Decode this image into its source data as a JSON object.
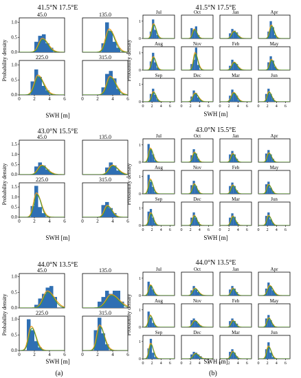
{
  "figure": {
    "panel_labels": [
      "(a)",
      "(b)"
    ],
    "ylabel": "Probability density",
    "xlabel": "SWH [m]",
    "colors": {
      "bar": "#2f6fb3",
      "curve_orange": "#e89a1a",
      "curve_green": "#3d9a3d"
    }
  },
  "locations": [
    {
      "title": "41.5°N 17.5°E"
    },
    {
      "title": "43.0°N 15.5°E"
    },
    {
      "title": "44.0°N 13.5°E"
    }
  ],
  "chart_data": [
    {
      "type": "bar",
      "panel": "a",
      "location": "41.5°N 17.5°E",
      "xlabel": "SWH [m]",
      "ylabel": "Probability density",
      "xticks": [
        0,
        2,
        4,
        6
      ],
      "yticks": [
        0.0,
        0.5,
        1.0
      ],
      "xlim": [
        0,
        6
      ],
      "ylim": [
        0,
        1.15
      ],
      "subplots": [
        {
          "title": "45.0",
          "edges": [
            2,
            2.5,
            3,
            3.5,
            4,
            4.5
          ],
          "heights": [
            0.35,
            0.55,
            0.6,
            0.3,
            0.15
          ]
        },
        {
          "title": "135.0",
          "edges": [
            2.5,
            3,
            3.5,
            4,
            4.5,
            5
          ],
          "heights": [
            0.3,
            1.0,
            0.7,
            0.35,
            0.15
          ]
        },
        {
          "title": "225.0",
          "edges": [
            1.5,
            2,
            2.5,
            3,
            3.5,
            4
          ],
          "heights": [
            0.45,
            0.85,
            0.6,
            0.3,
            0.15
          ]
        },
        {
          "title": "315.0",
          "edges": [
            2.5,
            3,
            3.5,
            4,
            4.5,
            5
          ],
          "heights": [
            0.25,
            0.7,
            0.8,
            0.55,
            0.2
          ]
        }
      ]
    },
    {
      "type": "bar",
      "panel": "a",
      "location": "43.0°N 15.5°E",
      "xlabel": "SWH [m]",
      "ylabel": "Probability density",
      "xticks": [
        0,
        2,
        4,
        6
      ],
      "yticks": [
        0.0,
        0.5,
        1.0,
        1.5
      ],
      "xlim": [
        0,
        6
      ],
      "ylim": [
        0,
        1.7
      ],
      "subplots": [
        {
          "title": "45.0",
          "edges": [
            2,
            2.5,
            3,
            3.5,
            4,
            4.5
          ],
          "heights": [
            0.4,
            0.6,
            0.45,
            0.25,
            0.1
          ]
        },
        {
          "title": "135.0",
          "edges": [
            3,
            3.5,
            4,
            4.5,
            5,
            5.5
          ],
          "heights": [
            0.35,
            0.6,
            0.45,
            0.2,
            0.1
          ]
        },
        {
          "title": "225.0",
          "edges": [
            1.5,
            2,
            2.5,
            3,
            3.5
          ],
          "heights": [
            0.55,
            1.55,
            0.5,
            0.2
          ]
        },
        {
          "title": "315.0",
          "edges": [
            2.5,
            3,
            3.5,
            4,
            4.5
          ],
          "heights": [
            0.6,
            0.75,
            0.45,
            0.2
          ]
        }
      ]
    },
    {
      "type": "bar",
      "panel": "a",
      "location": "44.0°N 13.5°E",
      "xlabel": "SWH [m]",
      "ylabel": "Probability density",
      "xticks": [
        0,
        2,
        4,
        6
      ],
      "yticks": [
        0.0,
        0.5,
        1.0
      ],
      "xlim": [
        0,
        6
      ],
      "ylim": [
        0,
        1.1
      ],
      "subplots": [
        {
          "title": "45.0",
          "edges": [
            2,
            2.5,
            3,
            3.5,
            4,
            4.5,
            5
          ],
          "heights": [
            0.1,
            0.3,
            0.45,
            0.65,
            0.7,
            0.35
          ]
        },
        {
          "title": "135.0",
          "edges": [
            2,
            2.5,
            3,
            3.5,
            4,
            4.5,
            5,
            5.5
          ],
          "heights": [
            0.2,
            0.35,
            0.55,
            0.45,
            0.55,
            0.55,
            0.2
          ]
        },
        {
          "title": "225.0",
          "edges": [
            1,
            1.5,
            2,
            2.5,
            3
          ],
          "heights": [
            1.0,
            0.65,
            0.3,
            0.1
          ]
        },
        {
          "title": "315.0",
          "edges": [
            1.5,
            2,
            2.5,
            3,
            3.5
          ],
          "heights": [
            0.65,
            1.05,
            0.55,
            0.2
          ]
        }
      ]
    },
    {
      "type": "bar",
      "panel": "b",
      "location": "41.5°N 17.5°E",
      "xlabel": "SWH [m]",
      "ylabel": "Probability density",
      "xticks": [
        0,
        2,
        4,
        6
      ],
      "yticks": [
        0,
        1
      ],
      "xlim": [
        0,
        7
      ],
      "ylim": [
        0,
        1.35
      ],
      "subplots": [
        {
          "title": "Jul",
          "edges": [
            1.5,
            2,
            2.5,
            3,
            3.5
          ],
          "heights": [
            0.4,
            1.1,
            0.5,
            0.2
          ]
        },
        {
          "title": "Oct",
          "edges": [
            2,
            2.5,
            3,
            3.5,
            4
          ],
          "heights": [
            0.6,
            0.5,
            0.7,
            0.2
          ]
        },
        {
          "title": "Jan",
          "edges": [
            2,
            2.5,
            3,
            3.5,
            4,
            4.5
          ],
          "heights": [
            0.3,
            0.55,
            0.45,
            0.35,
            0.15
          ]
        },
        {
          "title": "Apr",
          "edges": [
            2,
            2.5,
            3,
            3.5,
            4
          ],
          "heights": [
            0.4,
            1.0,
            0.65,
            0.2
          ]
        },
        {
          "title": "Aug",
          "edges": [
            1.5,
            2,
            2.5,
            3,
            3.5
          ],
          "heights": [
            0.5,
            1.0,
            0.45,
            0.15
          ]
        },
        {
          "title": "Nov",
          "edges": [
            2,
            2.5,
            3,
            3.5,
            4
          ],
          "heights": [
            0.35,
            0.6,
            1.3,
            0.3
          ]
        },
        {
          "title": "Feb",
          "edges": [
            2,
            2.5,
            3,
            3.5,
            4,
            4.5
          ],
          "heights": [
            0.25,
            0.6,
            0.45,
            0.35,
            0.15
          ]
        },
        {
          "title": "May",
          "edges": [
            2,
            2.5,
            3,
            3.5,
            4
          ],
          "heights": [
            0.45,
            0.8,
            0.55,
            0.2
          ]
        },
        {
          "title": "Sep",
          "edges": [
            1.5,
            2,
            2.5,
            3,
            3.5
          ],
          "heights": [
            0.45,
            0.75,
            0.4,
            0.15
          ]
        },
        {
          "title": "Dec",
          "edges": [
            2,
            2.5,
            3,
            3.5,
            4,
            4.5
          ],
          "heights": [
            0.3,
            0.65,
            0.5,
            0.25,
            0.1
          ]
        },
        {
          "title": "Mar",
          "edges": [
            2,
            2.5,
            3,
            3.5,
            4,
            4.5
          ],
          "heights": [
            0.35,
            0.7,
            0.5,
            0.35,
            0.1
          ]
        },
        {
          "title": "Jun",
          "edges": [
            1.5,
            2,
            2.5,
            3,
            3.5
          ],
          "heights": [
            0.45,
            0.75,
            0.45,
            0.2
          ]
        }
      ]
    },
    {
      "type": "bar",
      "panel": "b",
      "location": "43.0°N 15.5°E",
      "xlabel": "SWH [m]",
      "ylabel": "Probability density",
      "xticks": [
        0,
        2,
        4,
        6
      ],
      "yticks": [
        0,
        1
      ],
      "xlim": [
        0,
        7
      ],
      "ylim": [
        0,
        1.35
      ],
      "subplots": [
        {
          "title": "Jul",
          "edges": [
            1,
            1.5,
            2,
            2.5,
            3
          ],
          "heights": [
            1.05,
            0.75,
            0.45,
            0.1
          ]
        },
        {
          "title": "Oct",
          "edges": [
            2,
            2.5,
            3,
            3.5,
            4
          ],
          "heights": [
            0.4,
            0.75,
            0.5,
            0.2
          ]
        },
        {
          "title": "Jan",
          "edges": [
            2,
            2.5,
            3,
            3.5,
            4
          ],
          "heights": [
            0.45,
            0.65,
            0.45,
            0.2
          ]
        },
        {
          "title": "Apr",
          "edges": [
            1.5,
            2,
            2.5,
            3,
            3.5
          ],
          "heights": [
            0.5,
            0.7,
            0.45,
            0.2
          ]
        },
        {
          "title": "Aug",
          "edges": [
            1,
            1.5,
            2,
            2.5,
            3
          ],
          "heights": [
            1.1,
            0.7,
            0.4,
            0.1
          ]
        },
        {
          "title": "Nov",
          "edges": [
            2,
            2.5,
            3,
            3.5,
            4
          ],
          "heights": [
            0.5,
            0.75,
            0.45,
            0.2
          ]
        },
        {
          "title": "Feb",
          "edges": [
            2,
            2.5,
            3,
            3.5,
            4
          ],
          "heights": [
            0.45,
            0.65,
            0.45,
            0.2
          ]
        },
        {
          "title": "May",
          "edges": [
            1.5,
            2,
            2.5,
            3,
            3.5
          ],
          "heights": [
            0.55,
            0.7,
            0.35,
            0.15
          ]
        },
        {
          "title": "Sep",
          "edges": [
            1,
            1.5,
            2,
            2.5,
            3
          ],
          "heights": [
            0.8,
            0.95,
            0.45,
            0.15
          ]
        },
        {
          "title": "Dec",
          "edges": [
            2,
            2.5,
            3,
            3.5,
            4
          ],
          "heights": [
            0.45,
            0.75,
            0.45,
            0.2
          ]
        },
        {
          "title": "Mar",
          "edges": [
            2,
            2.5,
            3,
            3.5,
            4
          ],
          "heights": [
            0.45,
            0.7,
            0.5,
            0.2
          ]
        },
        {
          "title": "Jun",
          "edges": [
            1.5,
            2,
            2.5,
            3,
            3.5
          ],
          "heights": [
            0.55,
            0.75,
            0.35,
            0.15
          ]
        }
      ]
    },
    {
      "type": "bar",
      "panel": "b",
      "location": "44.0°N 13.5°E",
      "xlabel": "SWH [m]",
      "ylabel": "Probability density",
      "xticks": [
        0,
        2,
        4,
        6
      ],
      "yticks": [
        0,
        1
      ],
      "xlim": [
        0,
        7
      ],
      "ylim": [
        0,
        1.35
      ],
      "subplots": [
        {
          "title": "Jul",
          "edges": [
            1,
            1.5,
            2,
            2.5,
            3
          ],
          "heights": [
            0.8,
            0.6,
            0.35,
            0.1
          ]
        },
        {
          "title": "Oct",
          "edges": [
            2,
            2.5,
            3,
            3.5,
            4,
            4.5
          ],
          "heights": [
            0.3,
            0.55,
            0.35,
            0.2,
            0.1
          ]
        },
        {
          "title": "Jan",
          "edges": [
            2,
            2.5,
            3,
            3.5,
            4
          ],
          "heights": [
            0.35,
            0.55,
            0.4,
            0.2
          ]
        },
        {
          "title": "Apr",
          "edges": [
            1.5,
            2,
            2.5,
            3,
            3.5,
            4
          ],
          "heights": [
            0.4,
            0.75,
            0.55,
            0.3,
            0.15
          ]
        },
        {
          "title": "Aug",
          "edges": [
            1,
            1.5,
            2,
            2.5,
            3
          ],
          "heights": [
            0.9,
            0.55,
            0.25,
            0.1
          ]
        },
        {
          "title": "Nov",
          "edges": [
            2,
            2.5,
            3,
            3.5,
            4,
            4.5
          ],
          "heights": [
            0.4,
            0.5,
            0.35,
            0.2,
            0.1
          ]
        },
        {
          "title": "Feb",
          "edges": [
            2,
            2.5,
            3,
            3.5,
            4
          ],
          "heights": [
            0.35,
            0.5,
            0.35,
            0.2
          ]
        },
        {
          "title": "May",
          "edges": [
            1.5,
            2,
            2.5,
            3,
            3.5
          ],
          "heights": [
            0.5,
            0.7,
            0.4,
            0.15
          ]
        },
        {
          "title": "Sep",
          "edges": [
            1,
            1.5,
            2,
            2.5,
            3
          ],
          "heights": [
            0.6,
            1.15,
            0.35,
            0.1
          ]
        },
        {
          "title": "Dec",
          "edges": [
            2,
            2.5,
            3,
            3.5,
            4,
            4.5
          ],
          "heights": [
            0.25,
            0.4,
            0.35,
            0.25,
            0.15
          ]
        },
        {
          "title": "Mar",
          "edges": [
            2,
            2.5,
            3,
            3.5,
            4
          ],
          "heights": [
            0.4,
            0.55,
            0.35,
            0.15
          ]
        },
        {
          "title": "Jun",
          "edges": [
            1.5,
            2,
            2.5,
            3,
            3.5
          ],
          "heights": [
            0.55,
            0.95,
            0.35,
            0.1
          ]
        }
      ]
    }
  ]
}
